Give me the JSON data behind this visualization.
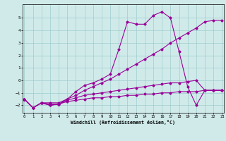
{
  "xlabel": "Windchill (Refroidissement éolien,°C)",
  "background_color": "#d0eaea",
  "grid_color": "#a0cccc",
  "line_color": "#990099",
  "x_values": [
    0,
    1,
    2,
    3,
    4,
    5,
    6,
    7,
    8,
    9,
    10,
    11,
    12,
    13,
    14,
    15,
    16,
    17,
    18,
    19,
    20,
    21,
    22,
    23
  ],
  "lines": [
    [
      -1.5,
      -2.2,
      -1.8,
      -2.0,
      -1.9,
      -1.5,
      -0.9,
      -0.4,
      -0.2,
      0.1,
      0.5,
      2.5,
      4.7,
      4.5,
      4.5,
      5.2,
      5.5,
      5.0,
      2.3,
      -0.5,
      -2.0,
      -0.8,
      -0.8,
      -0.8
    ],
    [
      -1.5,
      -2.2,
      -1.8,
      -1.8,
      -1.8,
      -1.5,
      -1.2,
      -0.8,
      -0.5,
      -0.2,
      0.1,
      0.5,
      0.9,
      1.3,
      1.7,
      2.1,
      2.5,
      3.0,
      3.4,
      3.8,
      4.2,
      4.7,
      4.8,
      4.8
    ],
    [
      -1.5,
      -2.2,
      -1.8,
      -1.9,
      -1.9,
      -1.6,
      -1.4,
      -1.2,
      -1.1,
      -1.0,
      -0.9,
      -0.8,
      -0.7,
      -0.6,
      -0.5,
      -0.4,
      -0.3,
      -0.2,
      -0.2,
      -0.1,
      0.0,
      -0.8,
      -0.8,
      -0.8
    ],
    [
      -1.5,
      -2.2,
      -1.8,
      -2.0,
      -1.9,
      -1.7,
      -1.6,
      -1.5,
      -1.4,
      -1.4,
      -1.3,
      -1.3,
      -1.2,
      -1.2,
      -1.1,
      -1.1,
      -1.0,
      -1.0,
      -0.9,
      -0.9,
      -0.9,
      -0.8,
      -0.8,
      -0.8
    ]
  ],
  "ylim": [
    -2.6,
    6.1
  ],
  "xlim": [
    -0.2,
    23.2
  ],
  "yticks": [
    -2,
    -1,
    0,
    1,
    2,
    3,
    4,
    5
  ],
  "xticks": [
    0,
    1,
    2,
    3,
    4,
    5,
    6,
    7,
    8,
    9,
    10,
    11,
    12,
    13,
    14,
    15,
    16,
    17,
    18,
    19,
    20,
    21,
    22,
    23
  ]
}
